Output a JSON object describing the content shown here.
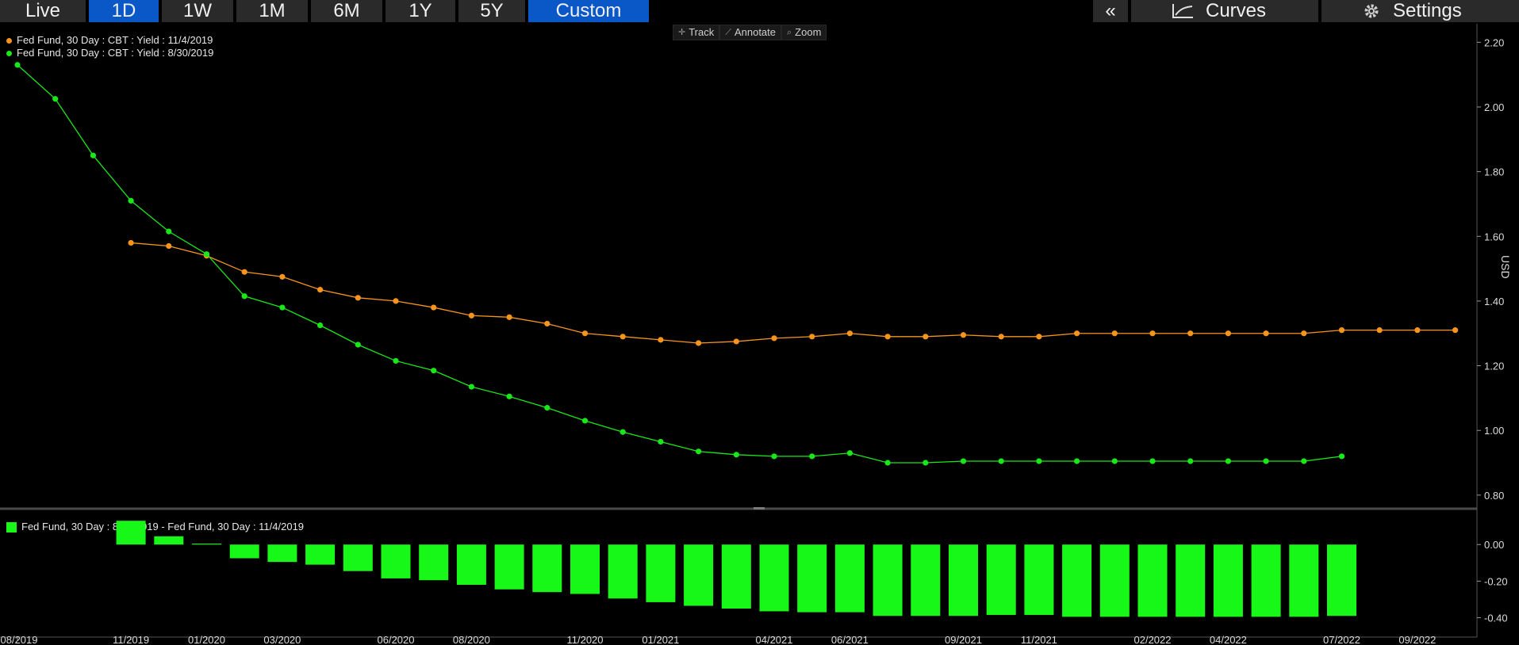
{
  "toolbar": {
    "tabs": [
      {
        "label": "Live",
        "active": false
      },
      {
        "label": "1D",
        "active": true
      },
      {
        "label": "1W",
        "active": false
      },
      {
        "label": "1M",
        "active": false
      },
      {
        "label": "6M",
        "active": false
      },
      {
        "label": "1Y",
        "active": false
      },
      {
        "label": "5Y",
        "active": false
      },
      {
        "label": "Custom",
        "active": true
      }
    ],
    "collapse_label": "«",
    "curves_label": "Curves",
    "settings_label": "Settings",
    "tools": [
      {
        "label": "Track",
        "icon": "crosshair-icon"
      },
      {
        "label": "Annotate",
        "icon": "pencil-icon"
      },
      {
        "label": "Zoom",
        "icon": "magnifier-icon"
      }
    ]
  },
  "colors": {
    "series1": "#f7941d",
    "series2": "#18e818",
    "bars": "#18f818",
    "active_tab": "#0a57c8"
  },
  "chart_data": [
    {
      "type": "line",
      "ylabel": "USD",
      "ylim": [
        0.78,
        2.24
      ],
      "yticks": [
        0.8,
        1.0,
        1.2,
        1.4,
        1.6,
        1.8,
        2.0,
        2.2
      ],
      "xlim": [
        "2019-08",
        "2022-11"
      ],
      "series": [
        {
          "name": "Fed Fund, 30 Day : CBT : Yield : 11/4/2019",
          "x": [
            "2019-11",
            "2019-12",
            "2020-01",
            "2020-02",
            "2020-03",
            "2020-04",
            "2020-05",
            "2020-06",
            "2020-07",
            "2020-08",
            "2020-09",
            "2020-10",
            "2020-11",
            "2020-12",
            "2021-01",
            "2021-02",
            "2021-03",
            "2021-04",
            "2021-05",
            "2021-06",
            "2021-07",
            "2021-08",
            "2021-09",
            "2021-10",
            "2021-11",
            "2021-12",
            "2022-01",
            "2022-02",
            "2022-03",
            "2022-04",
            "2022-05",
            "2022-06",
            "2022-07",
            "2022-08",
            "2022-09",
            "2022-10"
          ],
          "values": [
            1.58,
            1.57,
            1.54,
            1.49,
            1.475,
            1.435,
            1.41,
            1.4,
            1.38,
            1.355,
            1.35,
            1.33,
            1.3,
            1.29,
            1.28,
            1.27,
            1.275,
            1.285,
            1.29,
            1.3,
            1.29,
            1.29,
            1.295,
            1.29,
            1.29,
            1.3,
            1.3,
            1.3,
            1.3,
            1.3,
            1.3,
            1.3,
            1.31,
            1.31,
            1.31,
            1.31
          ]
        },
        {
          "name": "Fed Fund, 30 Day : CBT : Yield : 8/30/2019",
          "x": [
            "2019-08",
            "2019-09",
            "2019-10",
            "2019-11",
            "2019-12",
            "2020-01",
            "2020-02",
            "2020-03",
            "2020-04",
            "2020-05",
            "2020-06",
            "2020-07",
            "2020-08",
            "2020-09",
            "2020-10",
            "2020-11",
            "2020-12",
            "2021-01",
            "2021-02",
            "2021-03",
            "2021-04",
            "2021-05",
            "2021-06",
            "2021-07",
            "2021-08",
            "2021-09",
            "2021-10",
            "2021-11",
            "2021-12",
            "2022-01",
            "2022-02",
            "2022-03",
            "2022-04",
            "2022-05",
            "2022-06",
            "2022-07"
          ],
          "values": [
            2.13,
            2.025,
            1.85,
            1.71,
            1.615,
            1.545,
            1.415,
            1.38,
            1.325,
            1.265,
            1.215,
            1.185,
            1.135,
            1.105,
            1.07,
            1.03,
            0.995,
            0.965,
            0.935,
            0.925,
            0.92,
            0.92,
            0.93,
            0.9,
            0.9,
            0.905,
            0.905,
            0.905,
            0.905,
            0.905,
            0.905,
            0.905,
            0.905,
            0.905,
            0.905,
            0.92
          ]
        }
      ]
    },
    {
      "type": "bar",
      "ylim": [
        -0.48,
        0.17
      ],
      "yticks": [
        0.0,
        -0.2,
        -0.4
      ],
      "series": [
        {
          "name": "Fed Fund, 30 Day : 8/30/2019 - Fed Fund, 30 Day : 11/4/2019",
          "x": [
            "2019-11",
            "2019-12",
            "2020-01",
            "2020-02",
            "2020-03",
            "2020-04",
            "2020-05",
            "2020-06",
            "2020-07",
            "2020-08",
            "2020-09",
            "2020-10",
            "2020-11",
            "2020-12",
            "2021-01",
            "2021-02",
            "2021-03",
            "2021-04",
            "2021-05",
            "2021-06",
            "2021-07",
            "2021-08",
            "2021-09",
            "2021-10",
            "2021-11",
            "2021-12",
            "2022-01",
            "2022-02",
            "2022-03",
            "2022-04",
            "2022-05",
            "2022-06",
            "2022-07"
          ],
          "values": [
            0.13,
            0.045,
            0.005,
            -0.075,
            -0.095,
            -0.11,
            -0.145,
            -0.185,
            -0.195,
            -0.22,
            -0.245,
            -0.26,
            -0.27,
            -0.295,
            -0.315,
            -0.335,
            -0.35,
            -0.365,
            -0.37,
            -0.37,
            -0.39,
            -0.39,
            -0.39,
            -0.385,
            -0.385,
            -0.395,
            -0.395,
            -0.395,
            -0.395,
            -0.395,
            -0.395,
            -0.395,
            -0.39
          ]
        }
      ]
    }
  ],
  "xaxis_ticks": [
    {
      "label": "08/2019",
      "x": "2019-08"
    },
    {
      "label": "11/2019",
      "x": "2019-11"
    },
    {
      "label": "01/2020",
      "x": "2020-01"
    },
    {
      "label": "03/2020",
      "x": "2020-03"
    },
    {
      "label": "06/2020",
      "x": "2020-06"
    },
    {
      "label": "08/2020",
      "x": "2020-08"
    },
    {
      "label": "11/2020",
      "x": "2020-11"
    },
    {
      "label": "01/2021",
      "x": "2021-01"
    },
    {
      "label": "04/2021",
      "x": "2021-04"
    },
    {
      "label": "06/2021",
      "x": "2021-06"
    },
    {
      "label": "09/2021",
      "x": "2021-09"
    },
    {
      "label": "11/2021",
      "x": "2021-11"
    },
    {
      "label": "02/2022",
      "x": "2022-02"
    },
    {
      "label": "04/2022",
      "x": "2022-04"
    },
    {
      "label": "07/2022",
      "x": "2022-07"
    },
    {
      "label": "09/2022",
      "x": "2022-09"
    }
  ]
}
